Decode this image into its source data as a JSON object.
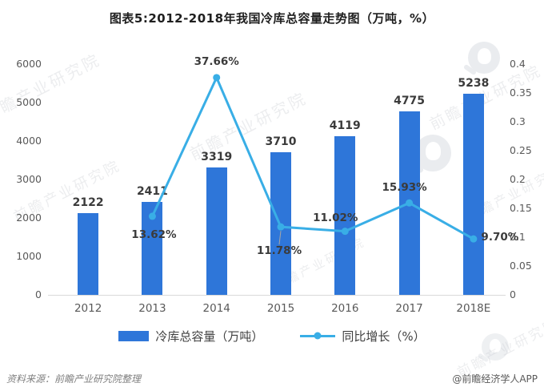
{
  "title": "图表5:2012-2018年我国冷库总容量走势图（万吨，%）",
  "watermark": {
    "text": "前瞻产业研究院"
  },
  "legend": {
    "bar_label": "冷库总容量（万吨）",
    "line_label": "同比增长（%）"
  },
  "footer": {
    "source": "资料来源：前瞻产业研究院整理",
    "credit": "@前瞻经济学人APP"
  },
  "colors": {
    "bar": "#2e76d9",
    "line": "#39aee6",
    "axis_text": "#595959",
    "label_text": "#3b3b3b",
    "axis_line": "#d9d9d9"
  },
  "chart_data": {
    "type": "bar",
    "subtype": "bar+line combo, dual axis",
    "title": "图表5:2012-2018年我国冷库总容量走势图（万吨，%）",
    "categories": [
      "2012",
      "2013",
      "2014",
      "2015",
      "2016",
      "2017",
      "2018E"
    ],
    "series": [
      {
        "name": "冷库总容量（万吨）",
        "type": "bar",
        "axis": "left",
        "values": [
          2122,
          2411,
          3319,
          3710,
          4119,
          4775,
          5238
        ],
        "labels": [
          "2122",
          "2411",
          "3319",
          "3710",
          "4119",
          "4775",
          "5238"
        ]
      },
      {
        "name": "同比增长（%）",
        "type": "line",
        "axis": "right",
        "values": [
          null,
          0.1362,
          0.3766,
          0.1178,
          0.1102,
          0.1593,
          0.097
        ],
        "labels": [
          null,
          "13.62%",
          "37.66%",
          "11.78%",
          "11.02%",
          "15.93%",
          "9.70%"
        ],
        "label_offsets": [
          [
            0,
            0
          ],
          [
            2,
            23
          ],
          [
            0,
            -20
          ],
          [
            -2,
            30
          ],
          [
            -12,
            -17
          ],
          [
            -6,
            -19
          ],
          [
            33,
            -2
          ]
        ]
      }
    ],
    "left_axis": {
      "min": 0,
      "max": 6000,
      "ticks": [
        "0",
        "1000",
        "2000",
        "3000",
        "4000",
        "5000",
        "6000"
      ]
    },
    "right_axis": {
      "min": 0,
      "max": 0.4,
      "ticks": [
        "0",
        "0.05",
        "0.1",
        "0.15",
        "0.2",
        "0.25",
        "0.3",
        "0.35",
        "0.4"
      ]
    },
    "grid": false,
    "legend_position": "bottom"
  }
}
